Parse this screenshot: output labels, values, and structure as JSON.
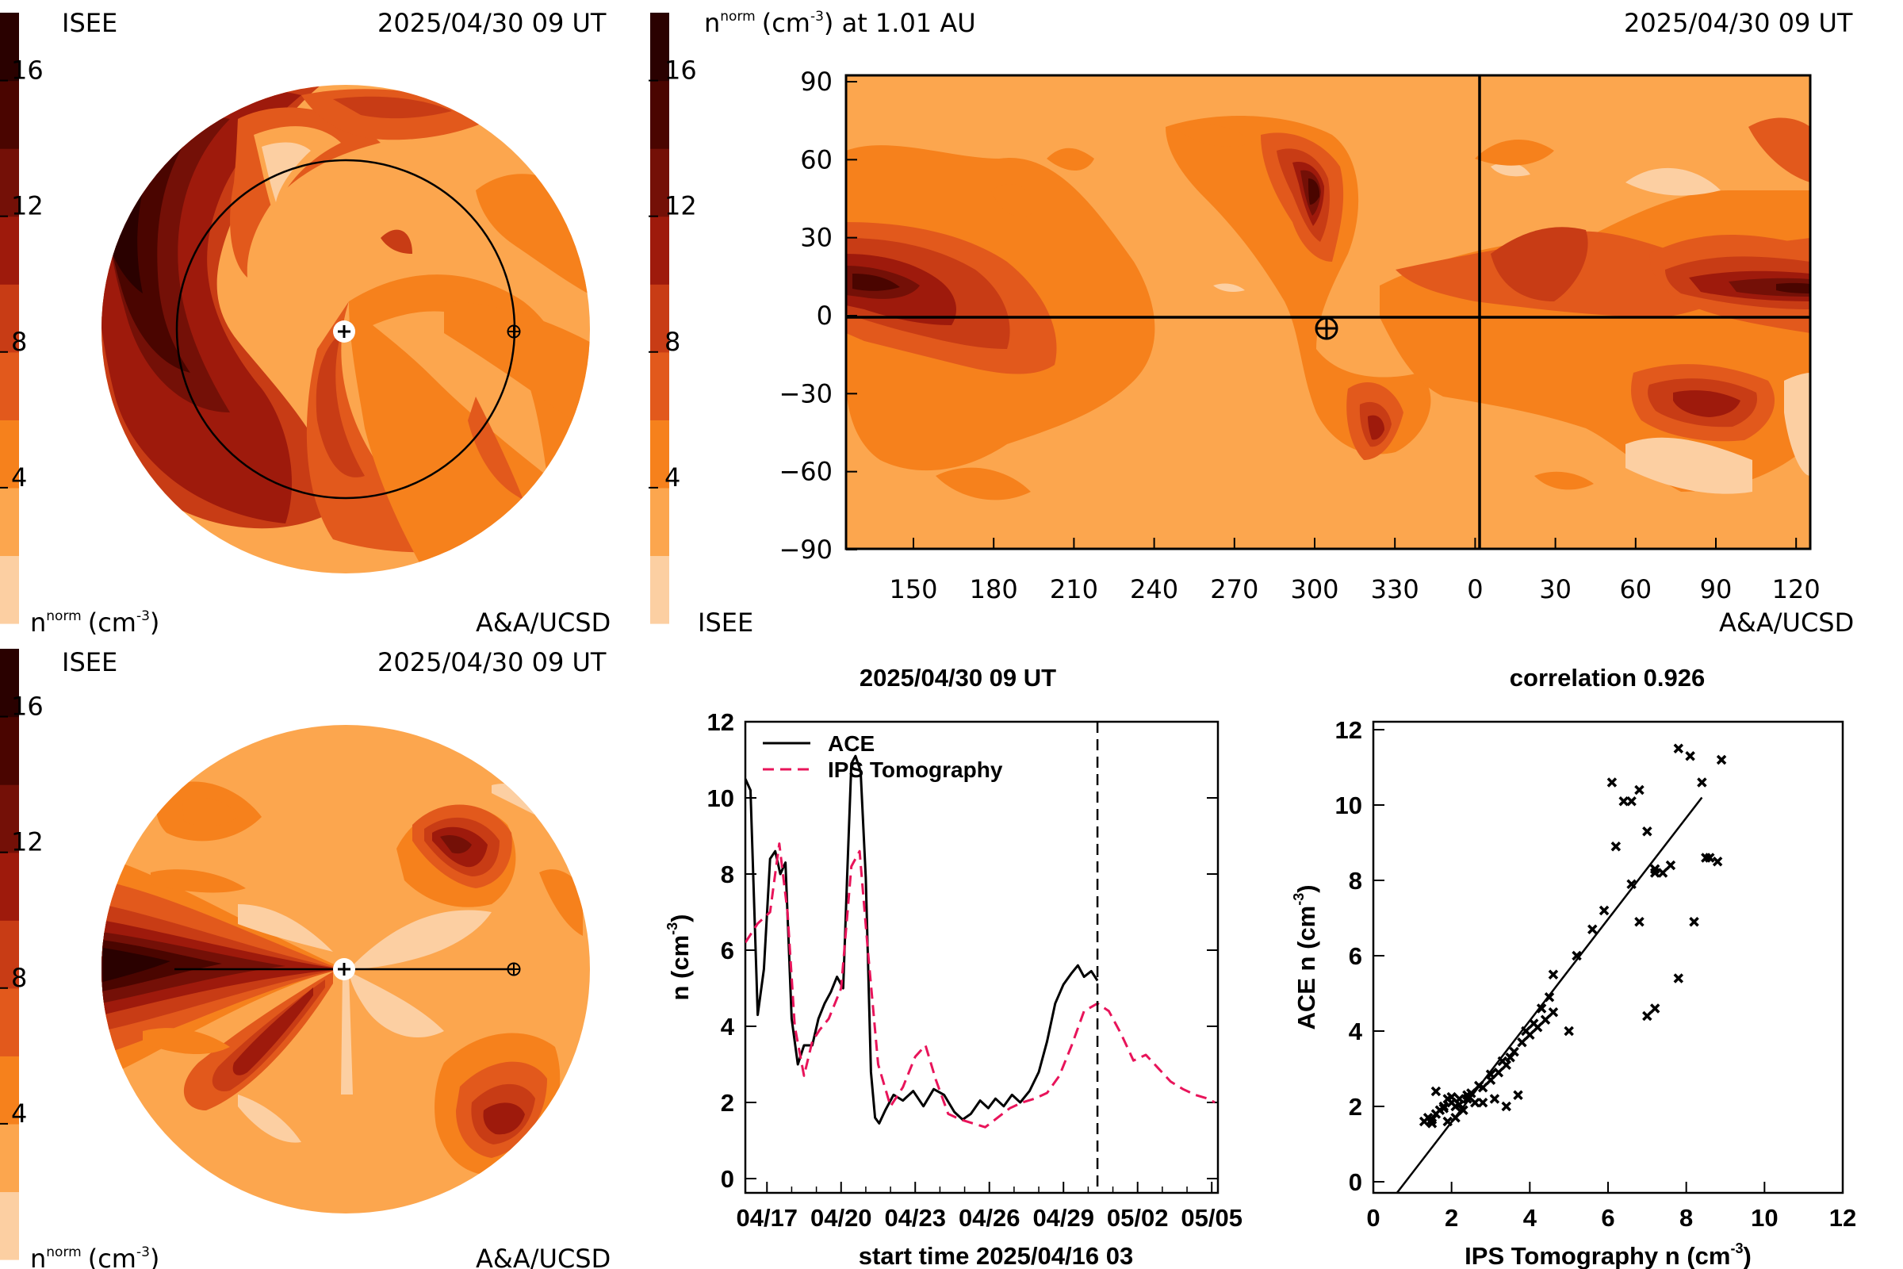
{
  "colors": {
    "scale": [
      "#fccfa2",
      "#fca64e",
      "#f6811c",
      "#e2591c",
      "#c83c15",
      "#9e1a0c",
      "#741007",
      "#4a0500",
      "#2a0100"
    ],
    "ips_series": "#e8145a",
    "ace_series": "#000000"
  },
  "colorbar": {
    "ticks": [
      "4",
      "8",
      "12",
      "16"
    ]
  },
  "panel1": {
    "institute_label": "ISEE",
    "datetime_label": "2025/04/30 09 UT",
    "units_label": "n",
    "units_sup": "norm",
    "units_tail": "(cm",
    "units_exp": "-3",
    "units_close": ")",
    "credit_label": "A&A/UCSD"
  },
  "panel2": {
    "title_main": "n",
    "title_sup": "norm",
    "title_units": "(cm",
    "title_exp": "-3",
    "title_tail": ") at 1.01 AU",
    "datetime_label": "2025/04/30 09 UT",
    "institute_label": "ISEE",
    "credit_label": "A&A/UCSD",
    "x_ticks": [
      "150",
      "180",
      "210",
      "240",
      "270",
      "300",
      "330",
      "0",
      "30",
      "60",
      "90",
      "120"
    ],
    "y_ticks": [
      "90",
      "60",
      "30",
      "0",
      "−30",
      "−60",
      "−90"
    ]
  },
  "panel3": {
    "institute_label": "ISEE",
    "datetime_label": "2025/04/30 09 UT",
    "units_label": "n",
    "units_sup": "norm",
    "units_tail": "(cm",
    "units_exp": "-3",
    "units_close": ")",
    "credit_label": "A&A/UCSD"
  },
  "chart_data": [
    {
      "type": "line",
      "title": "2025/04/30 09 UT",
      "xlabel": "start time 2025/04/16 03",
      "ylabel_main": "n (cm",
      "ylabel_exp": "-3",
      "ylabel_close": ")",
      "x_tick_labels": [
        "04/17",
        "04/20",
        "04/23",
        "04/26",
        "04/29",
        "05/02",
        "05/05"
      ],
      "y_ticks": [
        "0",
        "2",
        "4",
        "6",
        "8",
        "10",
        "12"
      ],
      "ylim": [
        0,
        12
      ],
      "current_time_marker": "2025/04/30 09",
      "series": [
        {
          "name": "ACE",
          "x": [
            "04/16 03",
            "04/16 08",
            "04/16 15",
            "04/16 21",
            "04/17 03",
            "04/17 08",
            "04/17 13",
            "04/17 18",
            "04/18 00",
            "04/18 06",
            "04/18 12",
            "04/18 20",
            "04/19 02",
            "04/19 08",
            "04/19 14",
            "04/19 20",
            "04/20 02",
            "04/20 06",
            "04/20 10",
            "04/20 14",
            "04/20 19",
            "04/21 00",
            "04/21 05",
            "04/21 09",
            "04/21 13",
            "04/21 19",
            "04/22 03",
            "04/22 12",
            "04/22 22",
            "04/23 08",
            "04/23 18",
            "04/24 04",
            "04/24 14",
            "04/24 22",
            "04/25 06",
            "04/25 15",
            "04/25 23",
            "04/26 06",
            "04/26 14",
            "04/26 22",
            "04/27 06",
            "04/27 15",
            "04/28 00",
            "04/28 08",
            "04/28 16",
            "04/29 00",
            "04/29 08",
            "04/29 14",
            "04/29 20",
            "04/30 03",
            "04/30 09"
          ],
          "y": [
            10.5,
            10.2,
            4.3,
            5.5,
            8.4,
            8.6,
            8.0,
            8.3,
            4.2,
            3.0,
            3.5,
            3.5,
            4.2,
            4.6,
            4.9,
            5.3,
            5.0,
            8.0,
            10.9,
            11.1,
            10.7,
            7.9,
            2.8,
            1.6,
            1.45,
            1.8,
            2.2,
            2.05,
            2.3,
            1.9,
            2.35,
            2.2,
            1.75,
            1.55,
            1.7,
            2.05,
            1.85,
            2.1,
            1.9,
            2.2,
            2.0,
            2.3,
            2.8,
            3.6,
            4.6,
            5.1,
            5.4,
            5.6,
            5.3,
            5.45,
            5.2
          ]
        },
        {
          "name": "IPS Tomography",
          "x": [
            "04/16 03",
            "04/16 15",
            "04/17 03",
            "04/17 12",
            "04/17 20",
            "04/18 03",
            "04/18 12",
            "04/18 20",
            "04/19 03",
            "04/19 12",
            "04/20 00",
            "04/20 10",
            "04/20 18",
            "04/21 02",
            "04/21 12",
            "04/22 00",
            "04/22 12",
            "04/23 00",
            "04/23 10",
            "04/23 20",
            "04/24 08",
            "04/24 20",
            "04/25 08",
            "04/25 20",
            "04/26 08",
            "04/26 20",
            "04/27 08",
            "04/27 20",
            "04/28 08",
            "04/28 20",
            "04/29 08",
            "04/29 20",
            "04/30 09",
            "04/30 20",
            "05/01 08",
            "05/01 20",
            "05/02 08",
            "05/02 20",
            "05/03 08",
            "05/03 20",
            "05/04 08",
            "05/04 20",
            "05/05 03"
          ],
          "y": [
            6.2,
            6.7,
            7.0,
            8.8,
            7.0,
            4.0,
            2.7,
            3.6,
            3.9,
            4.2,
            5.0,
            8.2,
            8.6,
            6.0,
            3.0,
            1.9,
            2.4,
            3.2,
            3.5,
            2.6,
            1.7,
            1.55,
            1.45,
            1.35,
            1.6,
            1.85,
            2.0,
            2.1,
            2.25,
            2.7,
            3.5,
            4.4,
            4.6,
            4.4,
            3.8,
            3.1,
            3.25,
            2.9,
            2.55,
            2.35,
            2.2,
            2.1,
            2.0
          ]
        }
      ]
    },
    {
      "type": "scatter",
      "title": "correlation 0.926",
      "xlabel_main": "IPS Tomography n (cm",
      "xlabel_exp": "-3",
      "xlabel_close": ")",
      "ylabel_main": "ACE n (cm",
      "ylabel_exp": "-3",
      "ylabel_close": ")",
      "x_ticks": [
        "0",
        "2",
        "4",
        "6",
        "8",
        "10",
        "12"
      ],
      "y_ticks": [
        "0",
        "2",
        "4",
        "6",
        "8",
        "10",
        "12"
      ],
      "xlim": [
        0,
        12
      ],
      "ylim": [
        0,
        12
      ],
      "fit_line": {
        "x": [
          0.6,
          8.4
        ],
        "y": [
          -0.3,
          10.2
        ]
      },
      "points": {
        "x": [
          1.3,
          1.4,
          1.5,
          1.6,
          1.7,
          1.8,
          1.9,
          2.0,
          2.1,
          2.2,
          2.3,
          1.6,
          1.9,
          2.1,
          2.4,
          2.6,
          2.8,
          3.0,
          3.2,
          3.4,
          3.5,
          1.5,
          1.8,
          2.0,
          2.2,
          2.5,
          2.7,
          3.0,
          3.3,
          3.6,
          3.8,
          4.0,
          4.2,
          4.4,
          4.6,
          2.4,
          2.8,
          3.1,
          3.4,
          3.7,
          3.9,
          4.1,
          4.3,
          4.5,
          4.6,
          5.0,
          5.6,
          5.9,
          6.1,
          6.4,
          6.6,
          6.8,
          7.0,
          7.2,
          7.4,
          6.2,
          6.6,
          7.2,
          7.6,
          7.8,
          8.1,
          8.4,
          8.6,
          8.8,
          6.8,
          7.0,
          7.2,
          7.8,
          8.2,
          8.5,
          8.9,
          5.2
        ],
        "y": [
          1.6,
          1.7,
          1.55,
          1.8,
          1.9,
          2.0,
          1.6,
          2.1,
          1.7,
          2.2,
          1.9,
          2.4,
          2.2,
          2.0,
          2.3,
          2.1,
          2.5,
          2.7,
          2.9,
          3.1,
          3.3,
          1.65,
          1.95,
          2.25,
          2.05,
          2.35,
          2.55,
          2.85,
          3.2,
          3.45,
          3.7,
          3.9,
          4.1,
          4.3,
          4.5,
          2.2,
          2.1,
          2.2,
          2.0,
          2.3,
          4.0,
          4.2,
          4.6,
          4.9,
          5.5,
          4.0,
          6.7,
          7.2,
          10.6,
          10.1,
          10.1,
          10.4,
          9.3,
          8.3,
          8.2,
          8.9,
          7.9,
          8.2,
          8.4,
          11.5,
          11.3,
          10.6,
          8.6,
          8.5,
          6.9,
          4.4,
          4.6,
          5.4,
          6.9,
          8.6,
          11.2,
          6.0
        ]
      }
    }
  ]
}
